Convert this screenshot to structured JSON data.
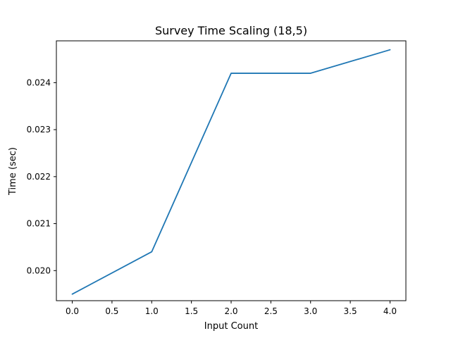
{
  "chart_data": {
    "type": "line",
    "title": "Survey Time Scaling (18,5)",
    "xlabel": "Input Count",
    "ylabel": "Time (sec)",
    "xlim": [
      -0.2,
      4.2
    ],
    "ylim": [
      0.01936,
      0.02489
    ],
    "xticks": [
      0.0,
      0.5,
      1.0,
      1.5,
      2.0,
      2.5,
      3.0,
      3.5,
      4.0
    ],
    "xtick_labels": [
      "0.0",
      "0.5",
      "1.0",
      "1.5",
      "2.0",
      "2.5",
      "3.0",
      "3.5",
      "4.0"
    ],
    "yticks": [
      0.02,
      0.021,
      0.022,
      0.023,
      0.024
    ],
    "ytick_labels": [
      "0.020",
      "0.021",
      "0.022",
      "0.023",
      "0.024"
    ],
    "grid": false,
    "series": [
      {
        "x": [
          0,
          1,
          2,
          3,
          4
        ],
        "values": [
          0.0195,
          0.0204,
          0.0242,
          0.0242,
          0.0247
        ],
        "color": "#1f77b4"
      }
    ]
  }
}
